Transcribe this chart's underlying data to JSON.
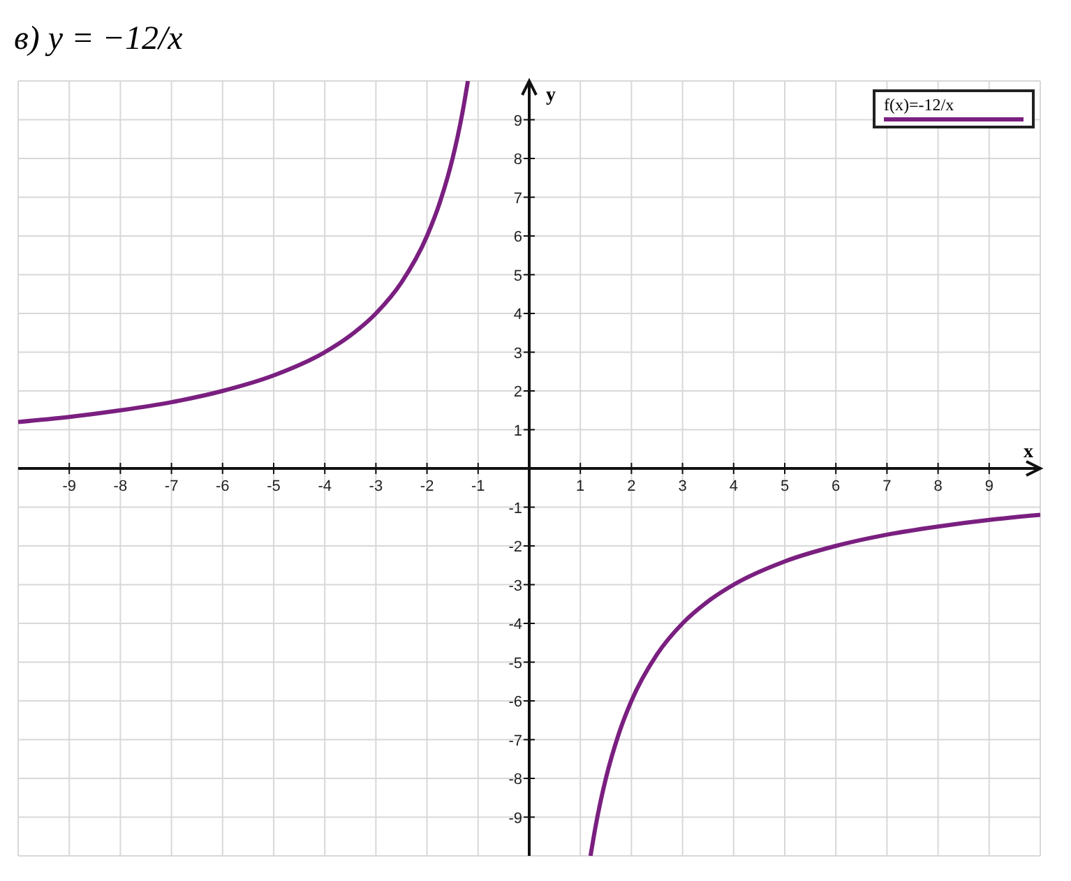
{
  "chart_data": {
    "type": "line",
    "title": "в) y = −12/x",
    "xlabel": "x",
    "ylabel": "y",
    "xlim": [
      -10,
      10
    ],
    "ylim": [
      -10,
      10
    ],
    "xticks": [
      -9,
      -8,
      -7,
      -6,
      -5,
      -4,
      -3,
      -2,
      -1,
      1,
      2,
      3,
      4,
      5,
      6,
      7,
      8,
      9
    ],
    "yticks": [
      -9,
      -8,
      -7,
      -6,
      -5,
      -4,
      -3,
      -2,
      -1,
      1,
      2,
      3,
      4,
      5,
      6,
      7,
      8,
      9
    ],
    "grid": true,
    "legend": "top right",
    "marker": "none",
    "line_style": "solid",
    "series": [
      {
        "name": "f(x)=-12/x",
        "color": "#7a1f80",
        "x": [
          -10,
          -9,
          -8,
          -7,
          -6,
          -5,
          -4,
          -3.5,
          -3,
          -2.5,
          -2,
          -1.75,
          -1.5,
          -1.4,
          -1.3,
          -1.2,
          0,
          1.2,
          1.3,
          1.4,
          1.5,
          1.75,
          2,
          2.5,
          3,
          3.5,
          4,
          5,
          6,
          7,
          8,
          9,
          10
        ],
        "values": [
          1.2,
          1.33,
          1.5,
          1.71,
          2,
          2.4,
          3,
          3.43,
          4,
          4.8,
          6,
          6.86,
          8,
          8.57,
          9.23,
          10,
          null,
          -10,
          -9.23,
          -8.57,
          -8,
          -6.86,
          -6,
          -4.8,
          -4,
          -3.43,
          -3,
          -2.4,
          -2,
          -1.71,
          -1.5,
          -1.33,
          -1.2
        ]
      }
    ]
  }
}
